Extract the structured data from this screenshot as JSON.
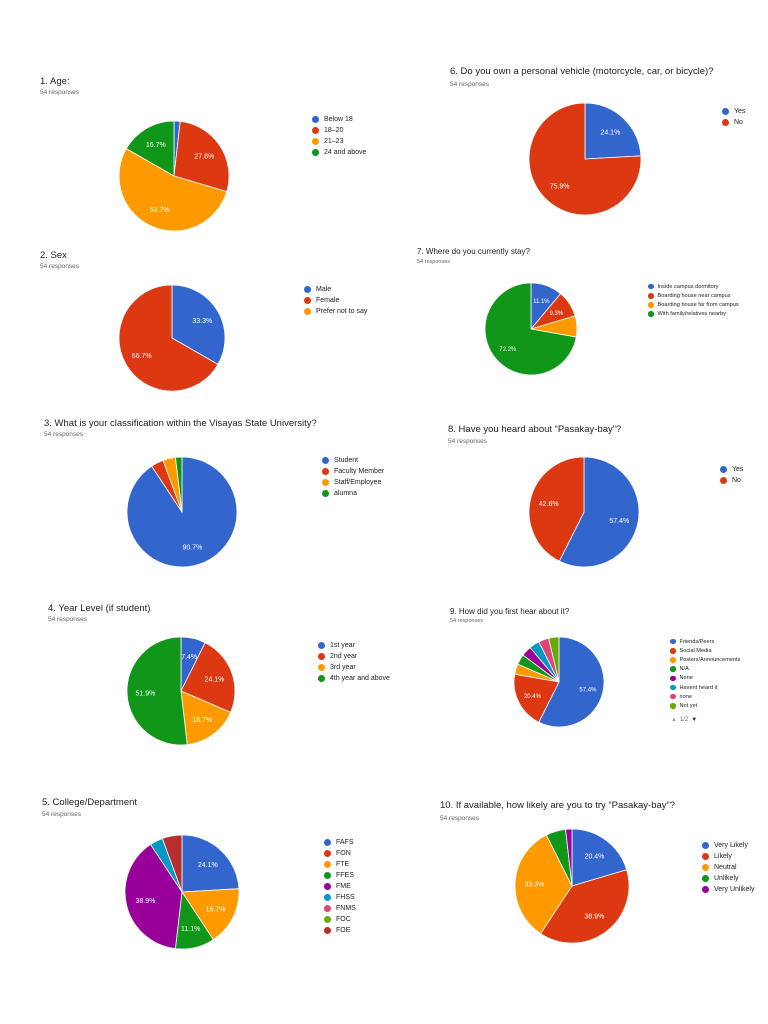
{
  "chart_data": [
    {
      "id": "q1",
      "type": "pie",
      "title": "1. Age:",
      "responses": "54 responses",
      "labels": [
        "Below 18",
        "18–20",
        "21–23",
        "24 and above"
      ],
      "values": [
        1.8,
        27.8,
        53.7,
        16.7
      ],
      "slice_labels": [
        "",
        "27.8%",
        "53.7%",
        "16.7%"
      ],
      "colors": [
        "#3366cc",
        "#dc3912",
        "#ff9900",
        "#109618"
      ]
    },
    {
      "id": "q2",
      "type": "pie",
      "title": "2. Sex",
      "responses": "54 responses",
      "labels": [
        "Male",
        "Female",
        "Prefer not to say"
      ],
      "values": [
        33.3,
        66.7,
        0
      ],
      "slice_labels": [
        "33.3%",
        "66.7%",
        ""
      ],
      "colors": [
        "#3366cc",
        "#dc3912",
        "#ff9900"
      ]
    },
    {
      "id": "q3",
      "type": "pie",
      "title": "3. What is your classification within the Visayas State University?",
      "responses": "54 responses",
      "labels": [
        "Student",
        "Faculty Member",
        "Staff/Employee",
        "alumna"
      ],
      "values": [
        90.7,
        3.7,
        3.7,
        1.9
      ],
      "slice_labels": [
        "90.7%",
        "",
        "",
        ""
      ],
      "colors": [
        "#3366cc",
        "#dc3912",
        "#ff9900",
        "#109618"
      ]
    },
    {
      "id": "q4",
      "type": "pie",
      "title": "4. Year Level (if student)",
      "responses": "54 responses",
      "labels": [
        "1st year",
        "2nd year",
        "3rd year",
        "4th year and above"
      ],
      "values": [
        7.4,
        24.1,
        16.7,
        51.9
      ],
      "slice_labels": [
        "7.4%",
        "24.1%",
        "16.7%",
        "51.9%"
      ],
      "colors": [
        "#3366cc",
        "#dc3912",
        "#ff9900",
        "#109618"
      ]
    },
    {
      "id": "q5",
      "type": "pie",
      "title": "5. College/Department",
      "responses": "54 responses",
      "labels": [
        "FAFS",
        "FON",
        "FTE",
        "FFES",
        "FME",
        "FHSS",
        "FNMS",
        "FOC",
        "FOE"
      ],
      "values": [
        24.1,
        0,
        16.7,
        11.1,
        38.9,
        3.7,
        0,
        0,
        5.6
      ],
      "slice_labels": [
        "24.1%",
        "",
        "16.7%",
        "11.1%",
        "38.9%",
        "",
        "",
        "",
        ""
      ],
      "colors": [
        "#3366cc",
        "#dc3912",
        "#ff9900",
        "#109618",
        "#990099",
        "#0099c6",
        "#dd4477",
        "#66aa00",
        "#b82e2e"
      ]
    },
    {
      "id": "q6",
      "type": "pie",
      "title": "6. Do you own a personal vehicle (motorcycle, car, or bicycle)?",
      "responses": "54 responses",
      "labels": [
        "Yes",
        "No"
      ],
      "values": [
        24.1,
        75.9
      ],
      "slice_labels": [
        "24.1%",
        "75.9%"
      ],
      "colors": [
        "#3366cc",
        "#dc3912"
      ]
    },
    {
      "id": "q7",
      "type": "pie",
      "title": "7. Where do you currently stay?",
      "responses": "54 responses",
      "labels": [
        "Inside campus dormitory",
        "Boarding house near campus",
        "Boarding house far from campus",
        "With family/relatives nearby"
      ],
      "values": [
        11.1,
        9.3,
        7.4,
        72.2
      ],
      "slice_labels": [
        "11.1%",
        "9.3%",
        "",
        "72.2%"
      ],
      "colors": [
        "#3366cc",
        "#dc3912",
        "#ff9900",
        "#109618"
      ]
    },
    {
      "id": "q8",
      "type": "pie",
      "title": "8. Have you heard about “Pasakay-bay”?",
      "responses": "54 responses",
      "labels": [
        "Yes",
        "No"
      ],
      "values": [
        57.4,
        42.6
      ],
      "slice_labels": [
        "57.4%",
        "42.6%"
      ],
      "colors": [
        "#3366cc",
        "#dc3912"
      ]
    },
    {
      "id": "q9",
      "type": "pie",
      "title": "9. How did you first hear about it?",
      "responses": "54 responses",
      "labels": [
        "Friends/Peers",
        "Social Media",
        "Posters/Announcements",
        "N/A",
        "None",
        "Havent heard it",
        "none",
        "Not yet"
      ],
      "values": [
        57.4,
        20.4,
        3.7,
        3.7,
        3.7,
        3.7,
        3.7,
        3.7
      ],
      "slice_labels": [
        "57.4%",
        "20.4%",
        "",
        "",
        "",
        "",
        "",
        ""
      ],
      "colors": [
        "#3366cc",
        "#dc3912",
        "#ff9900",
        "#109618",
        "#990099",
        "#0099c6",
        "#dd4477",
        "#66aa00"
      ],
      "pager": "1/2"
    },
    {
      "id": "q10",
      "type": "pie",
      "title": "10. If available, how likely are you to try “Pasakay-bay”?",
      "responses": "54 responses",
      "labels": [
        "Very Likely",
        "Likely",
        "Neutral",
        "Unlikely",
        "Very Unlikely"
      ],
      "values": [
        20.4,
        38.9,
        33.3,
        5.6,
        1.8
      ],
      "slice_labels": [
        "20.4%",
        "38.9%",
        "33.3%",
        "",
        ""
      ],
      "colors": [
        "#3366cc",
        "#dc3912",
        "#ff9900",
        "#109618",
        "#990099"
      ]
    }
  ]
}
